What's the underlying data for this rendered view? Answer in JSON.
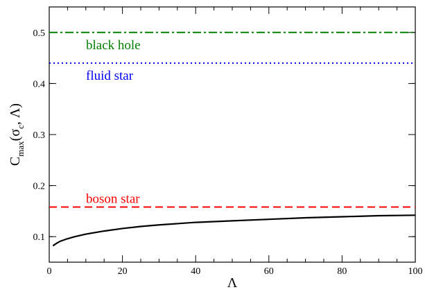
{
  "chart_data": {
    "type": "line",
    "xlabel": "Λ",
    "ylabel": {
      "main": "C",
      "sub1": "max",
      "paren_open": "(σ",
      "sub2": "c",
      "rest": ", Λ)"
    },
    "xlim": [
      0,
      100
    ],
    "ylim": [
      0.05,
      0.55
    ],
    "xticks": [
      0,
      20,
      40,
      60,
      80,
      100
    ],
    "yticks": [
      0.1,
      0.2,
      0.3,
      0.4,
      0.5
    ],
    "xtick_labels": [
      "0",
      "20",
      "40",
      "60",
      "80",
      "100"
    ],
    "ytick_labels": [
      "0.1",
      "0.2",
      "0.3",
      "0.4",
      "0.5"
    ],
    "grid": false,
    "series": [
      {
        "color": "#000000",
        "style": "solid",
        "x": [
          1,
          2,
          3,
          5,
          7,
          10,
          15,
          20,
          25,
          30,
          40,
          50,
          60,
          70,
          80,
          90,
          100
        ],
        "y": [
          0.082,
          0.087,
          0.091,
          0.096,
          0.1,
          0.105,
          0.111,
          0.116,
          0.12,
          0.123,
          0.128,
          0.131,
          0.134,
          0.137,
          0.139,
          0.141,
          0.142
        ]
      }
    ],
    "hlines": [
      {
        "name": "black hole",
        "y": 0.5,
        "color": "#008000",
        "style": "dashdot"
      },
      {
        "name": "fluid star",
        "y": 0.44,
        "color": "#0000ff",
        "style": "dotted"
      },
      {
        "name": "boson star",
        "y": 0.158,
        "color": "#ff0000",
        "style": "dashed"
      }
    ]
  }
}
